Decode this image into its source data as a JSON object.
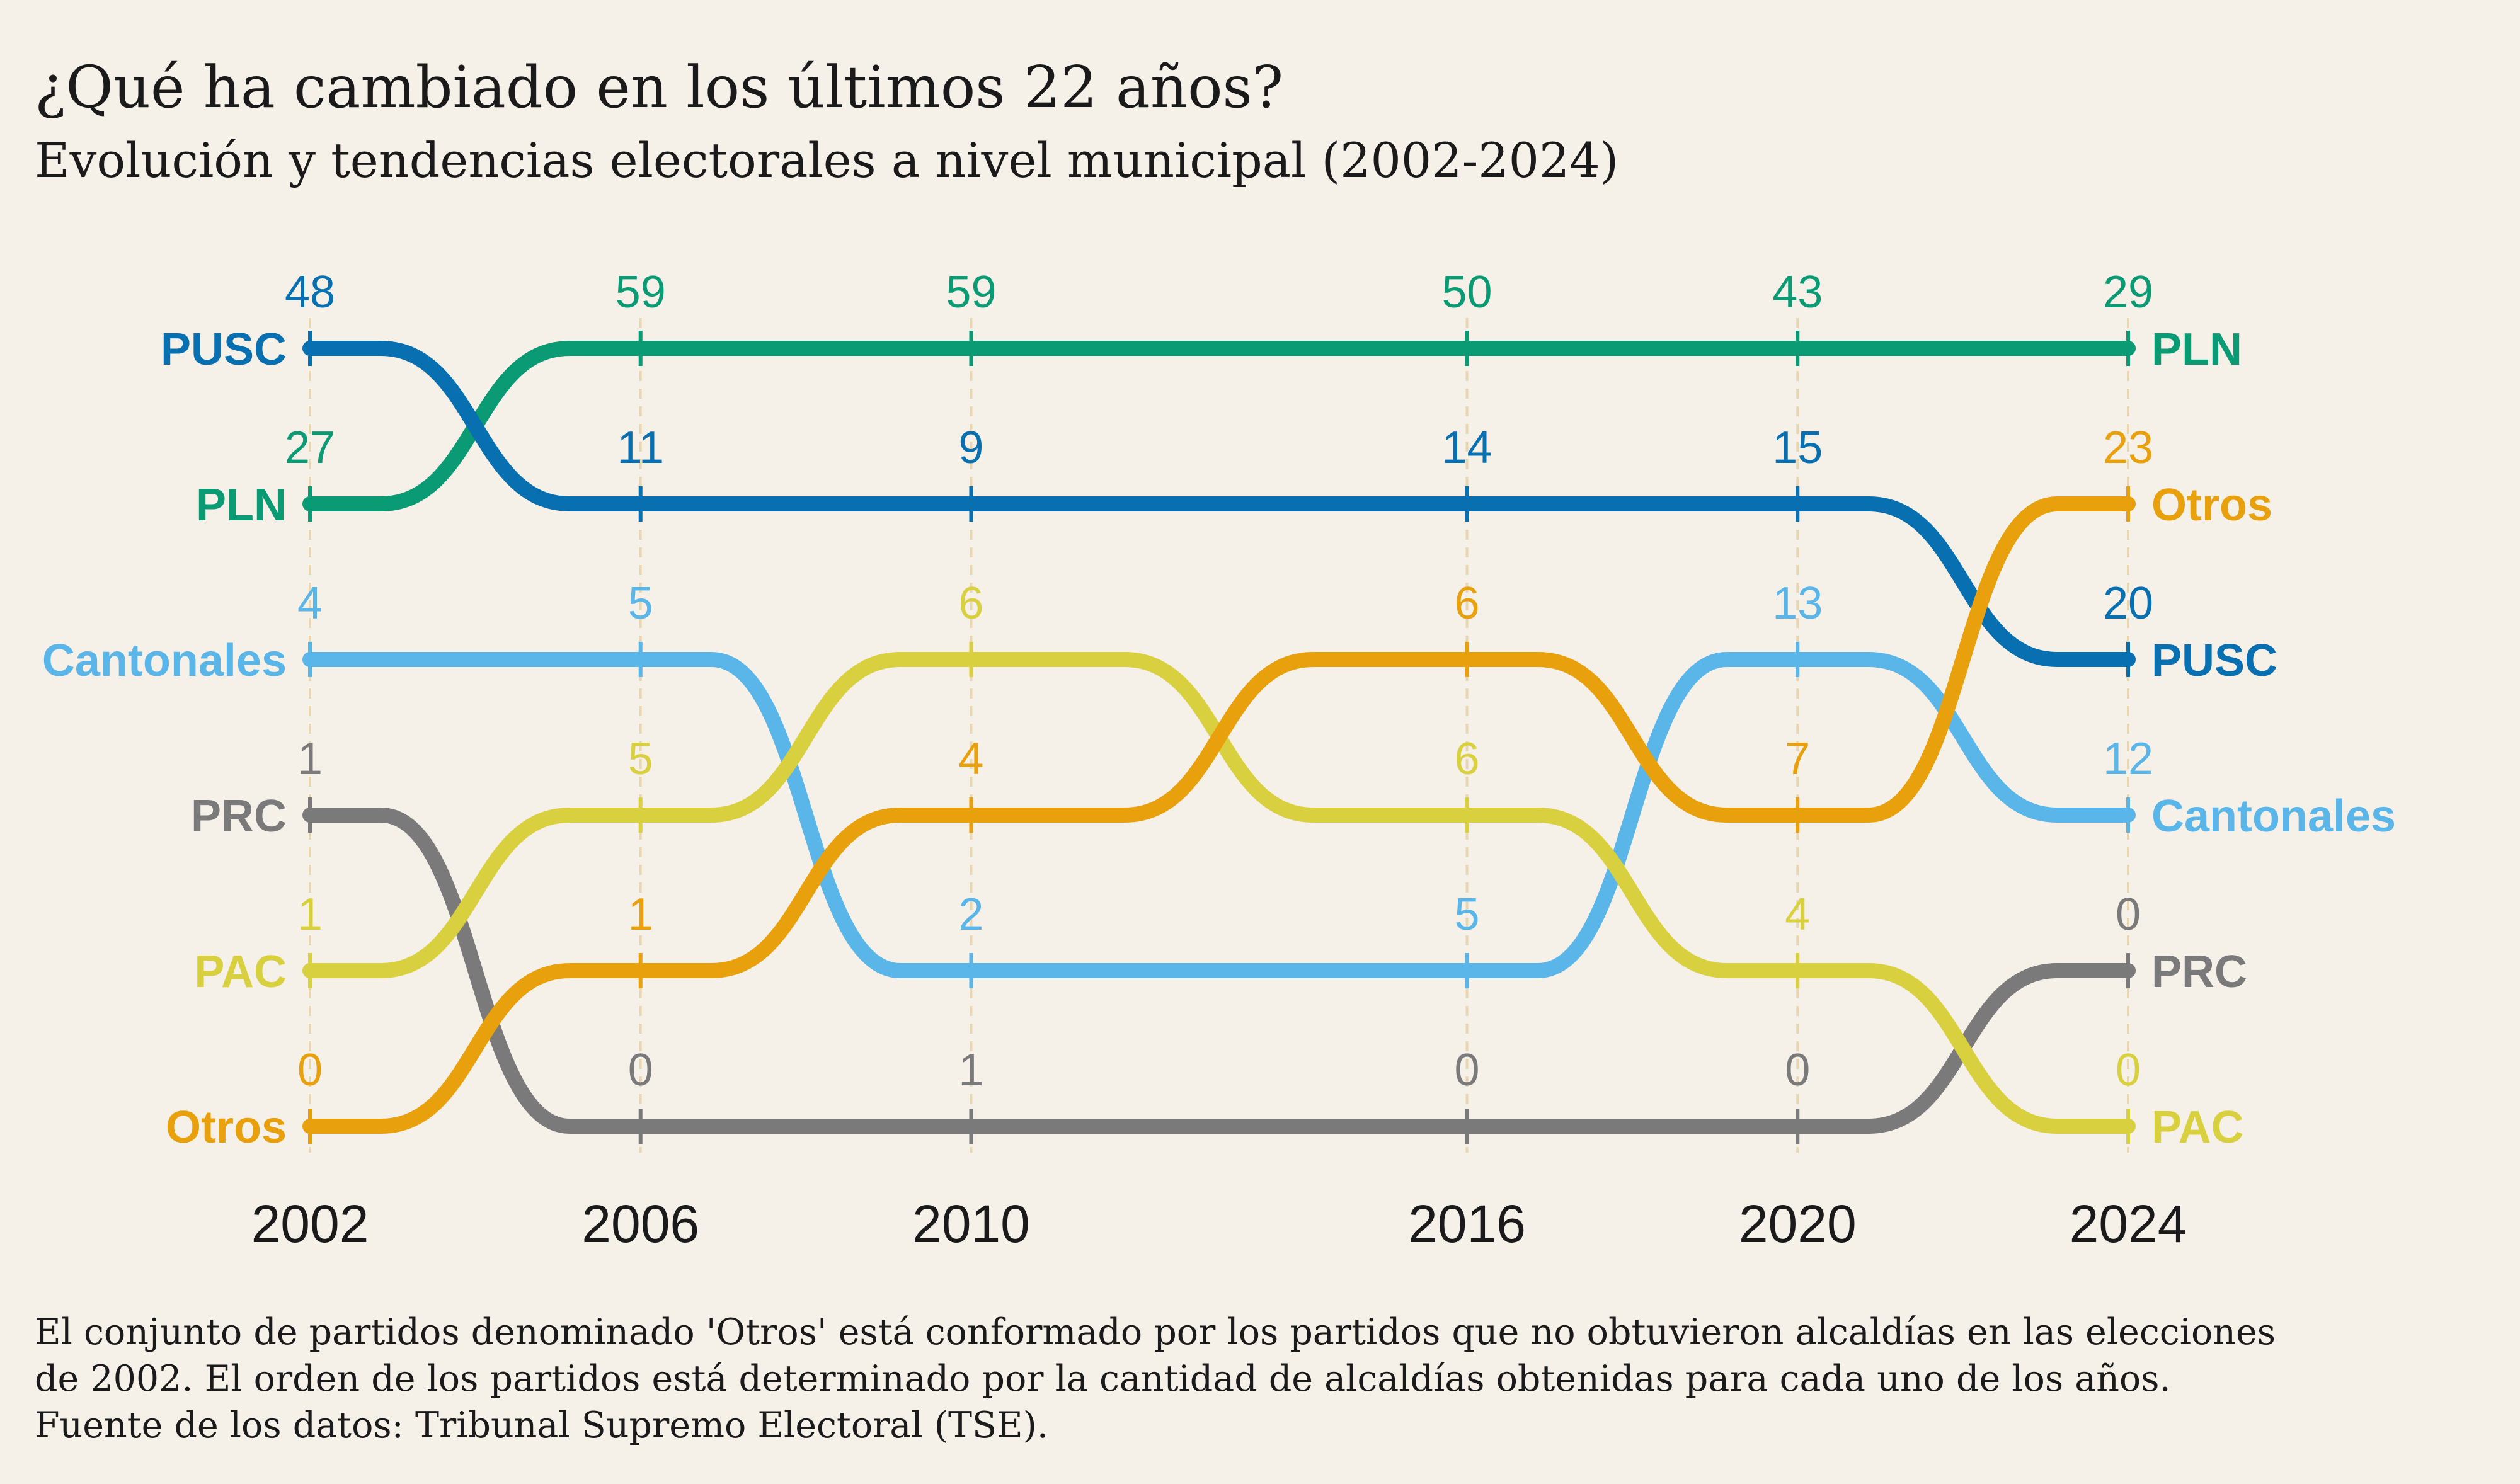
{
  "title": "¿Qué ha cambiado en los últimos 22 años?",
  "subtitle": "Evolución y tendencias electorales a nivel municipal (2002-2024)",
  "footnote": {
    "line1": "El conjunto de partidos denominado 'Otros' está conformado por los partidos que no obtuvieron alcaldías en las elecciones",
    "line2": "de 2002. El orden de los partidos está determinado por la cantidad de alcaldías obtenidas para cada uno de los años.",
    "line3": "Fuente de los datos: Tribunal Supremo Electoral (TSE)."
  },
  "chart_data": {
    "type": "bump",
    "x": [
      2002,
      2006,
      2010,
      2016,
      2020,
      2024
    ],
    "grid": "vertical dashed lines at each year",
    "series": [
      {
        "name": "PLN",
        "color": "#0a9b74",
        "ranks": [
          2,
          1,
          1,
          1,
          1,
          1
        ],
        "values": [
          27,
          59,
          59,
          50,
          43,
          29
        ]
      },
      {
        "name": "PUSC",
        "color": "#0870b0",
        "ranks": [
          1,
          2,
          2,
          2,
          2,
          3
        ],
        "values": [
          48,
          11,
          9,
          14,
          15,
          20
        ]
      },
      {
        "name": "Cantonales",
        "color": "#5ab5e8",
        "ranks": [
          3,
          3,
          5,
          5,
          3,
          4
        ],
        "values": [
          4,
          5,
          2,
          5,
          13,
          12
        ]
      },
      {
        "name": "PRC",
        "color": "#7a7a7a",
        "ranks": [
          4,
          6,
          6,
          6,
          6,
          5
        ],
        "values": [
          1,
          0,
          1,
          0,
          0,
          0
        ]
      },
      {
        "name": "PAC",
        "color": "#d9d040",
        "ranks": [
          5,
          4,
          3,
          4,
          5,
          6
        ],
        "values": [
          1,
          5,
          6,
          6,
          4,
          0
        ]
      },
      {
        "name": "Otros",
        "color": "#e8a10c",
        "ranks": [
          6,
          5,
          4,
          3,
          4,
          2
        ],
        "values": [
          0,
          1,
          4,
          6,
          7,
          23
        ]
      }
    ]
  }
}
